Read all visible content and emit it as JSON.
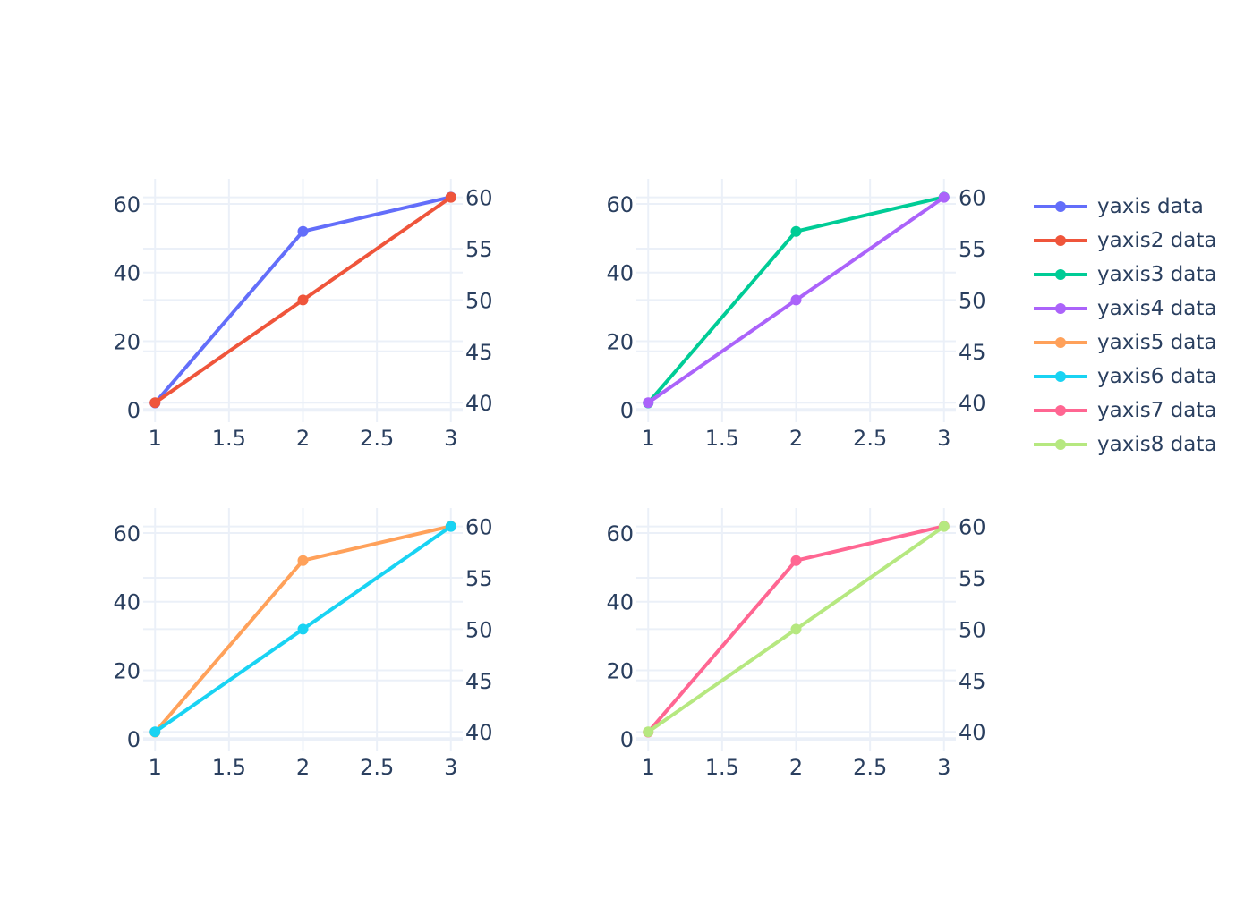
{
  "chart_data": {
    "type": "line",
    "title": "",
    "layout": "2x2 subplots, each with a left and right (secondary) y-axis",
    "x": [
      1,
      2,
      3
    ],
    "x_ticks": [
      "1",
      "1.5",
      "2",
      "2.5",
      "3"
    ],
    "xlim": [
      0.92,
      3.08
    ],
    "grid": true,
    "legend_position": "right",
    "subplots": [
      {
        "position": "top-left",
        "left_axis": {
          "range": [
            -3.6,
            67.3
          ],
          "ticks": [
            "0",
            "20",
            "40",
            "60"
          ]
        },
        "right_axis": {
          "range": [
            38.1,
            61.8
          ],
          "ticks": [
            "40",
            "45",
            "50",
            "55",
            "60"
          ]
        },
        "series": [
          {
            "name": "yaxis data",
            "axis": "left",
            "values": [
              2,
              52,
              62
            ],
            "color": "#636efa"
          },
          {
            "name": "yaxis2 data",
            "axis": "right",
            "values": [
              40,
              50,
              60
            ],
            "color": "#EF553B"
          }
        ]
      },
      {
        "position": "top-right",
        "left_axis": {
          "range": [
            -3.6,
            67.3
          ],
          "ticks": [
            "0",
            "20",
            "40",
            "60"
          ]
        },
        "right_axis": {
          "range": [
            38.1,
            61.8
          ],
          "ticks": [
            "40",
            "45",
            "50",
            "55",
            "60"
          ]
        },
        "series": [
          {
            "name": "yaxis3 data",
            "axis": "left",
            "values": [
              2,
              52,
              62
            ],
            "color": "#00cc96"
          },
          {
            "name": "yaxis4 data",
            "axis": "right",
            "values": [
              40,
              50,
              60
            ],
            "color": "#ab63fa"
          }
        ]
      },
      {
        "position": "bottom-left",
        "left_axis": {
          "range": [
            -3.6,
            67.3
          ],
          "ticks": [
            "0",
            "20",
            "40",
            "60"
          ]
        },
        "right_axis": {
          "range": [
            38.1,
            61.8
          ],
          "ticks": [
            "40",
            "45",
            "50",
            "55",
            "60"
          ]
        },
        "series": [
          {
            "name": "yaxis5 data",
            "axis": "left",
            "values": [
              2,
              52,
              62
            ],
            "color": "#FFA15A"
          },
          {
            "name": "yaxis6 data",
            "axis": "right",
            "values": [
              40,
              50,
              60
            ],
            "color": "#19d3f3"
          }
        ]
      },
      {
        "position": "bottom-right",
        "left_axis": {
          "range": [
            -3.6,
            67.3
          ],
          "ticks": [
            "0",
            "20",
            "40",
            "60"
          ]
        },
        "right_axis": {
          "range": [
            38.1,
            61.8
          ],
          "ticks": [
            "40",
            "45",
            "50",
            "55",
            "60"
          ]
        },
        "series": [
          {
            "name": "yaxis7 data",
            "axis": "left",
            "values": [
              2,
              52,
              62
            ],
            "color": "#FF6692"
          },
          {
            "name": "yaxis8 data",
            "axis": "right",
            "values": [
              40,
              50,
              60
            ],
            "color": "#B6E880"
          }
        ]
      }
    ]
  },
  "legend": {
    "items": [
      {
        "label": "yaxis data",
        "color": "#636efa"
      },
      {
        "label": "yaxis2 data",
        "color": "#EF553B"
      },
      {
        "label": "yaxis3 data",
        "color": "#00cc96"
      },
      {
        "label": "yaxis4 data",
        "color": "#ab63fa"
      },
      {
        "label": "yaxis5 data",
        "color": "#FFA15A"
      },
      {
        "label": "yaxis6 data",
        "color": "#19d3f3"
      },
      {
        "label": "yaxis7 data",
        "color": "#FF6692"
      },
      {
        "label": "yaxis8 data",
        "color": "#B6E880"
      }
    ]
  },
  "colors": {
    "grid": "#ebf0f8",
    "zeroline": "#ebf0f8",
    "tick_text": "#2a3f5f",
    "background": "#ffffff"
  }
}
